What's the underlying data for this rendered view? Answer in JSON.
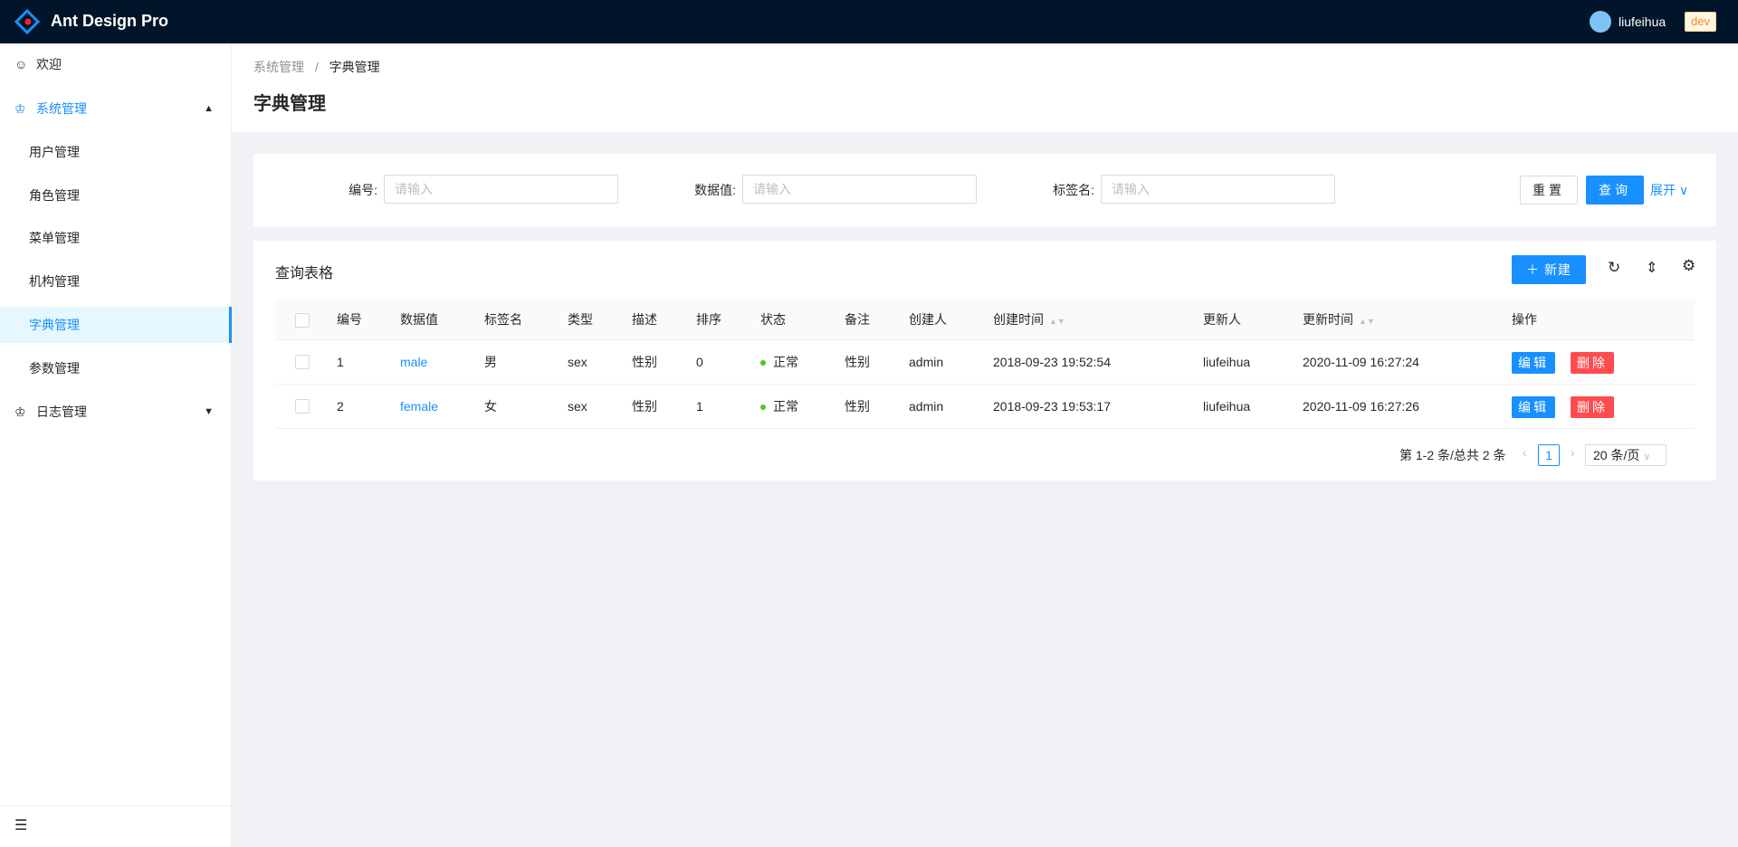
{
  "header": {
    "brand": "Ant Design Pro",
    "username": "liufeihua",
    "env_tag": "dev"
  },
  "sidebar": {
    "items": [
      {
        "label": "欢迎",
        "icon": "smile-icon"
      },
      {
        "label": "系统管理",
        "icon": "crown-icon",
        "open": true,
        "children": [
          {
            "label": "用户管理"
          },
          {
            "label": "角色管理"
          },
          {
            "label": "菜单管理"
          },
          {
            "label": "机构管理"
          },
          {
            "label": "字典管理",
            "selected": true
          },
          {
            "label": "参数管理"
          }
        ]
      },
      {
        "label": "日志管理",
        "icon": "crown-icon"
      }
    ]
  },
  "breadcrumb": [
    "系统管理",
    "/",
    "字典管理"
  ],
  "page_title": "字典管理",
  "search": {
    "fields": [
      {
        "label": "编号:",
        "placeholder": "请输入"
      },
      {
        "label": "数据值:",
        "placeholder": "请输入"
      },
      {
        "label": "标签名:",
        "placeholder": "请输入"
      }
    ],
    "reset": "重置",
    "query": "查询",
    "expand": "展开"
  },
  "table": {
    "title": "查询表格",
    "new_label": "新建",
    "columns": [
      "编号",
      "数据值",
      "标签名",
      "类型",
      "描述",
      "排序",
      "状态",
      "备注",
      "创建人",
      "创建时间",
      "更新人",
      "更新时间",
      "操作"
    ],
    "rows": [
      [
        "1",
        "male",
        "男",
        "sex",
        "性别",
        "0",
        "正常",
        "性别",
        "admin",
        "2018-09-23 19:52:54",
        "liufeihua",
        "2020-11-09 16:27:24"
      ],
      [
        "2",
        "female",
        "女",
        "sex",
        "性别",
        "1",
        "正常",
        "性别",
        "admin",
        "2018-09-23 19:53:17",
        "liufeihua",
        "2020-11-09 16:27:26"
      ]
    ],
    "edit_label": "编辑",
    "delete_label": "删除"
  },
  "pagination": {
    "summary": "第 1-2 条/总共 2 条",
    "current": "1",
    "page_size": "20 条/页"
  },
  "colors": {
    "primary": "#1890ff",
    "danger": "#ff4d4f",
    "header_bg": "#001529",
    "status_ok": "#52c41a"
  }
}
